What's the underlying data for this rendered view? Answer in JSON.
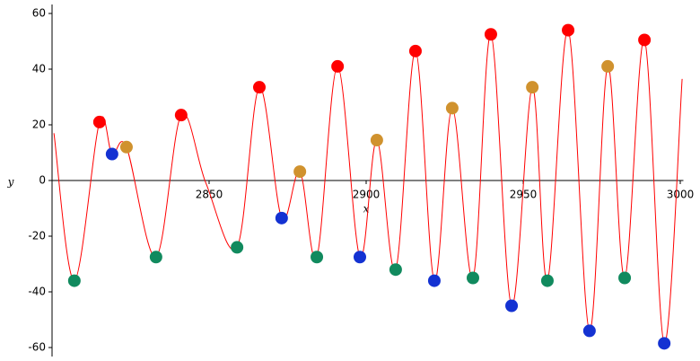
{
  "chart_data": {
    "type": "line",
    "x_label": "x",
    "y_label": "y",
    "xlim": [
      2800,
      3001
    ],
    "ylim": [
      -60,
      60
    ],
    "xticks": [
      2850,
      2900,
      2950,
      3000
    ],
    "yticks": [
      -60,
      -40,
      -20,
      0,
      20,
      40,
      60
    ],
    "curve": {
      "color": "#ff0000",
      "x": [
        2800.6,
        2807.1,
        2815.1,
        2819.1,
        2823.7,
        2833.1,
        2841.1,
        2849,
        2858.9,
        2866,
        2873.1,
        2878.9,
        2884.3,
        2890.9,
        2898,
        2903.4,
        2909.4,
        2915.7,
        2921.7,
        2927.4,
        2934,
        2939.7,
        2946.3,
        2952.9,
        2957.7,
        2964.3,
        2971.1,
        2976.9,
        2982.3,
        2988.6,
        2994.9,
        3000.6
      ],
      "y": [
        17,
        -36,
        21,
        9.5,
        12,
        -27.5,
        23.5,
        -1,
        -24,
        33.5,
        -13.5,
        3.2,
        -27.5,
        41,
        -27.5,
        14.5,
        -32,
        46.5,
        -36,
        26,
        -35,
        52.5,
        -45,
        33.5,
        -36,
        54,
        -54,
        41,
        -35,
        50.5,
        -58.5,
        36.5
      ]
    },
    "points": [
      {
        "color": "#ff0000",
        "x": [
          2815.1,
          2841.1,
          2866,
          2890.9,
          2915.7,
          2939.7,
          2964.3,
          2988.6
        ],
        "y": [
          21,
          23.5,
          33.5,
          41,
          46.5,
          52.5,
          54,
          50.5
        ]
      },
      {
        "color": "#1432d2",
        "x": [
          2819.1,
          2873.1,
          2898,
          2921.7,
          2946.3,
          2971.1,
          2994.9
        ],
        "y": [
          9.5,
          -13.5,
          -27.5,
          -36,
          -45,
          -54,
          -58.5
        ]
      },
      {
        "color": "#d0922e",
        "x": [
          2823.7,
          2878.9,
          2903.4,
          2927.4,
          2952.9,
          2976.9
        ],
        "y": [
          12,
          3.2,
          14.5,
          26,
          33.5,
          41
        ]
      },
      {
        "color": "#118a5e",
        "x": [
          2807.1,
          2833.1,
          2858.9,
          2884.3,
          2909.4,
          2934,
          2957.7,
          2982.3
        ],
        "y": [
          -36,
          -27.5,
          -24,
          -27.5,
          -32,
          -35,
          -36,
          -35
        ]
      }
    ]
  }
}
